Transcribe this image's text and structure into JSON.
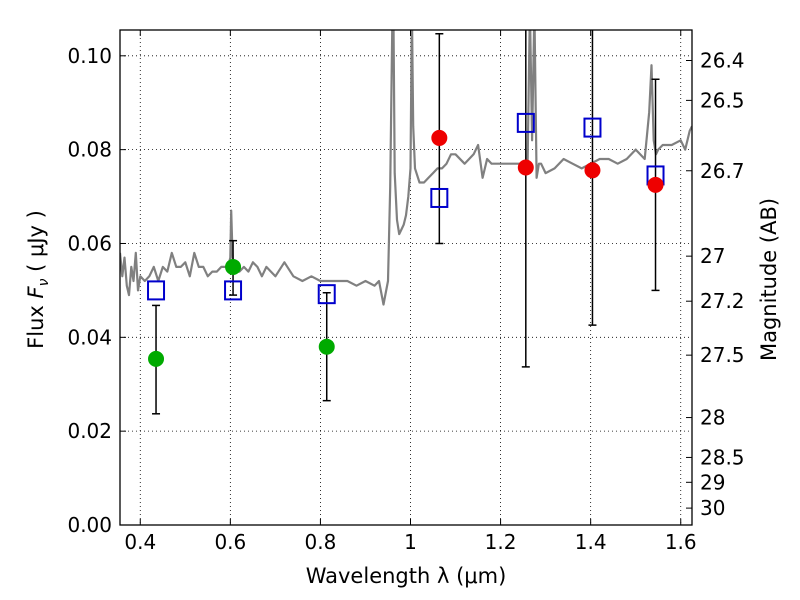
{
  "chart_data": {
    "type": "scatter",
    "xlabel": "Wavelength  λ (μm)",
    "ylabel": "Flux  F_ν  ( μJy )",
    "ylabel_right": "Magnitude (AB)",
    "xlim": [
      0.355,
      1.625
    ],
    "ylim": [
      0.0,
      0.1055
    ],
    "grid": true,
    "xticks": [
      0.4,
      0.6,
      0.8,
      1.0,
      1.2,
      1.4,
      1.6
    ],
    "xtick_labels": [
      "0.4",
      "0.6",
      "0.8",
      "1",
      "1.2",
      "1.4",
      "1.6"
    ],
    "yticks": [
      0.0,
      0.02,
      0.04,
      0.06,
      0.08,
      0.1
    ],
    "ytick_labels": [
      "0.00",
      "0.02",
      "0.04",
      "0.06",
      "0.08",
      "0.10"
    ],
    "right_ticks": [
      {
        "label": "26.4",
        "flux": 0.099
      },
      {
        "label": "26.5",
        "flux": 0.0905
      },
      {
        "label": "26.7",
        "flux": 0.0755
      },
      {
        "label": "27",
        "flux": 0.0573
      },
      {
        "label": "27.2",
        "flux": 0.0477
      },
      {
        "label": "27.5",
        "flux": 0.0362
      },
      {
        "label": "28",
        "flux": 0.0229
      },
      {
        "label": "28.5",
        "flux": 0.0144
      },
      {
        "label": "29",
        "flux": 0.0091
      },
      {
        "label": "30",
        "flux": 0.0036
      }
    ],
    "colors": {
      "template": "#808080",
      "green_points": "#00aa00",
      "red_points": "#ee0000",
      "model_squares": "#0000cc",
      "error_bars": "#000000"
    },
    "series": [
      {
        "marker": "green-circle",
        "points": [
          {
            "x": 0.435,
            "y": 0.0354,
            "err_lo": 0.0117,
            "err_hi": 0.0114
          },
          {
            "x": 0.606,
            "y": 0.055,
            "err_lo": 0.006,
            "err_hi": 0.0056
          },
          {
            "x": 0.814,
            "y": 0.038,
            "err_lo": 0.0115,
            "err_hi": 0.0115
          }
        ]
      },
      {
        "marker": "red-circle",
        "points": [
          {
            "x": 1.064,
            "y": 0.0825,
            "err_lo": 0.0225,
            "err_hi": 0.0222
          },
          {
            "x": 1.256,
            "y": 0.0762,
            "err_lo": 0.0425,
            "err_hi": 0.0305
          },
          {
            "x": 1.404,
            "y": 0.0756,
            "err_lo": 0.033,
            "err_hi": 0.031
          },
          {
            "x": 1.544,
            "y": 0.0725,
            "err_lo": 0.0225,
            "err_hi": 0.0225
          }
        ]
      },
      {
        "marker": "blue-square",
        "points": [
          {
            "x": 0.435,
            "y": 0.05
          },
          {
            "x": 0.606,
            "y": 0.05
          },
          {
            "x": 0.814,
            "y": 0.0492
          },
          {
            "x": 1.064,
            "y": 0.0697
          },
          {
            "x": 1.256,
            "y": 0.0857
          },
          {
            "x": 1.404,
            "y": 0.0847
          },
          {
            "x": 1.544,
            "y": 0.0745
          }
        ]
      },
      {
        "marker": "template-line",
        "x": [
          0.355,
          0.36,
          0.365,
          0.37,
          0.375,
          0.38,
          0.385,
          0.39,
          0.395,
          0.4,
          0.41,
          0.42,
          0.43,
          0.44,
          0.45,
          0.46,
          0.47,
          0.48,
          0.49,
          0.5,
          0.51,
          0.52,
          0.53,
          0.54,
          0.55,
          0.56,
          0.57,
          0.58,
          0.59,
          0.595,
          0.6,
          0.602,
          0.605,
          0.608,
          0.61,
          0.62,
          0.63,
          0.64,
          0.65,
          0.66,
          0.67,
          0.68,
          0.69,
          0.7,
          0.72,
          0.74,
          0.76,
          0.78,
          0.8,
          0.82,
          0.84,
          0.86,
          0.88,
          0.9,
          0.92,
          0.93,
          0.94,
          0.95,
          0.955,
          0.96,
          0.962,
          0.965,
          0.97,
          0.975,
          0.98,
          0.985,
          0.99,
          0.995,
          1.0,
          1.003,
          1.006,
          1.01,
          1.02,
          1.03,
          1.04,
          1.05,
          1.06,
          1.07,
          1.08,
          1.09,
          1.1,
          1.12,
          1.14,
          1.15,
          1.16,
          1.17,
          1.18,
          1.2,
          1.22,
          1.24,
          1.26,
          1.265,
          1.27,
          1.275,
          1.28,
          1.285,
          1.29,
          1.3,
          1.32,
          1.34,
          1.36,
          1.38,
          1.4,
          1.42,
          1.44,
          1.46,
          1.48,
          1.5,
          1.52,
          1.53,
          1.535,
          1.54,
          1.545,
          1.55,
          1.56,
          1.58,
          1.6,
          1.61,
          1.62,
          1.625
        ],
        "y": [
          0.058,
          0.053,
          0.057,
          0.051,
          0.049,
          0.055,
          0.052,
          0.058,
          0.05,
          0.053,
          0.052,
          0.053,
          0.055,
          0.052,
          0.055,
          0.054,
          0.058,
          0.055,
          0.055,
          0.056,
          0.053,
          0.058,
          0.055,
          0.055,
          0.053,
          0.054,
          0.054,
          0.055,
          0.055,
          0.055,
          0.057,
          0.067,
          0.057,
          0.055,
          0.054,
          0.054,
          0.055,
          0.054,
          0.056,
          0.055,
          0.053,
          0.055,
          0.054,
          0.053,
          0.056,
          0.053,
          0.052,
          0.053,
          0.052,
          0.052,
          0.052,
          0.052,
          0.051,
          0.052,
          0.051,
          0.052,
          0.047,
          0.052,
          0.072,
          0.11,
          0.11,
          0.075,
          0.065,
          0.062,
          0.063,
          0.064,
          0.066,
          0.07,
          0.076,
          0.11,
          0.085,
          0.076,
          0.073,
          0.073,
          0.074,
          0.075,
          0.076,
          0.076,
          0.077,
          0.079,
          0.079,
          0.077,
          0.079,
          0.081,
          0.074,
          0.078,
          0.077,
          0.077,
          0.077,
          0.077,
          0.077,
          0.11,
          0.082,
          0.11,
          0.074,
          0.077,
          0.077,
          0.075,
          0.076,
          0.078,
          0.077,
          0.076,
          0.077,
          0.078,
          0.078,
          0.077,
          0.078,
          0.08,
          0.078,
          0.088,
          0.098,
          0.082,
          0.079,
          0.08,
          0.081,
          0.081,
          0.082,
          0.08,
          0.084,
          0.085
        ]
      }
    ]
  }
}
